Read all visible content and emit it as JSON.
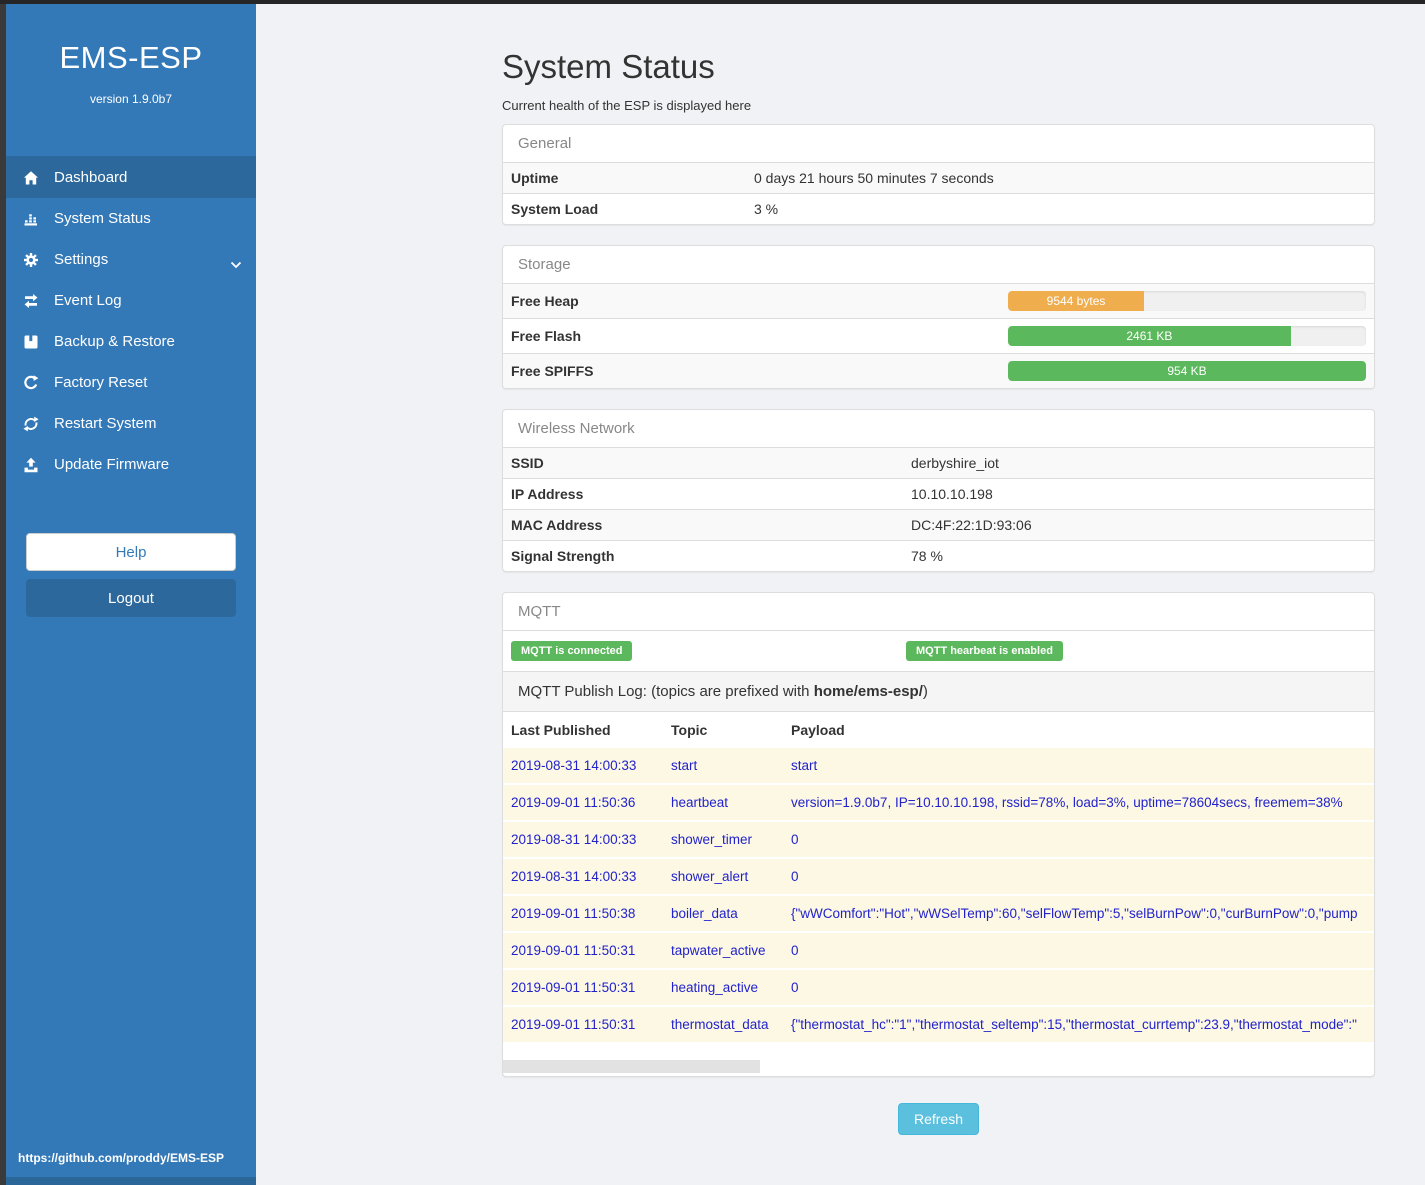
{
  "colors": {
    "sidebar_blue": "#3378b7",
    "active_nav_blue": "#2c689c",
    "logout_blue": "#2d689d",
    "badge_green": "#5cb85c",
    "heap_orange": "#f0ad4e",
    "refresh_teal": "#5bc0de",
    "log_row_cream": "#fcf8e3",
    "log_text_blue": "#2222cc"
  },
  "sidebar": {
    "brand": "EMS-ESP",
    "version": "version 1.9.0b7",
    "nav": [
      {
        "label": "Dashboard"
      },
      {
        "label": "System Status"
      },
      {
        "label": "Settings"
      },
      {
        "label": "Event Log"
      },
      {
        "label": "Backup & Restore"
      },
      {
        "label": "Factory Reset"
      },
      {
        "label": "Restart System"
      },
      {
        "label": "Update Firmware"
      }
    ],
    "help_label": "Help",
    "logout_label": "Logout",
    "footer_link": "https://github.com/proddy/EMS-ESP"
  },
  "page": {
    "title": "System Status",
    "subtitle": "Current health of the ESP is displayed here"
  },
  "general": {
    "title": "General",
    "rows": [
      {
        "label": "Uptime",
        "value": "0 days 21 hours 50 minutes 7 seconds"
      },
      {
        "label": "System Load",
        "value": "3 %"
      }
    ]
  },
  "storage": {
    "title": "Storage",
    "rows": [
      {
        "label": "Free Heap",
        "value": "9544 bytes",
        "percent": 38,
        "color": "#f0ad4e"
      },
      {
        "label": "Free Flash",
        "value": "2461 KB",
        "percent": 79,
        "color": "#5cb85c"
      },
      {
        "label": "Free SPIFFS",
        "value": "954 KB",
        "percent": 100,
        "color": "#5cb85c"
      }
    ]
  },
  "wireless": {
    "title": "Wireless Network",
    "rows": [
      {
        "label": "SSID",
        "value": "derbyshire_iot"
      },
      {
        "label": "IP Address",
        "value": "10.10.10.198"
      },
      {
        "label": "MAC Address",
        "value": "DC:4F:22:1D:93:06"
      },
      {
        "label": "Signal Strength",
        "value": "78 %"
      }
    ]
  },
  "mqtt": {
    "title": "MQTT",
    "badges": [
      "MQTT is connected",
      "MQTT hearbeat is enabled"
    ],
    "publog_prefix": "MQTT Publish Log: (topics are prefixed with ",
    "publog_bold": "home/ems-esp/",
    "publog_suffix": ")",
    "columns": [
      "Last Published",
      "Topic",
      "Payload"
    ],
    "rows": [
      {
        "time": "2019-08-31 14:00:33",
        "topic": "start",
        "payload": "start"
      },
      {
        "time": "2019-09-01 11:50:36",
        "topic": "heartbeat",
        "payload": "version=1.9.0b7, IP=10.10.10.198, rssid=78%, load=3%, uptime=78604secs, freemem=38%"
      },
      {
        "time": "2019-08-31 14:00:33",
        "topic": "shower_timer",
        "payload": "0"
      },
      {
        "time": "2019-08-31 14:00:33",
        "topic": "shower_alert",
        "payload": "0"
      },
      {
        "time": "2019-09-01 11:50:38",
        "topic": "boiler_data",
        "payload": "{\"wWComfort\":\"Hot\",\"wWSelTemp\":60,\"selFlowTemp\":5,\"selBurnPow\":0,\"curBurnPow\":0,\"pump"
      },
      {
        "time": "2019-09-01 11:50:31",
        "topic": "tapwater_active",
        "payload": "0"
      },
      {
        "time": "2019-09-01 11:50:31",
        "topic": "heating_active",
        "payload": "0"
      },
      {
        "time": "2019-09-01 11:50:31",
        "topic": "thermostat_data",
        "payload": "{\"thermostat_hc\":\"1\",\"thermostat_seltemp\":15,\"thermostat_currtemp\":23.9,\"thermostat_mode\":\""
      }
    ]
  },
  "refresh_label": "Refresh"
}
